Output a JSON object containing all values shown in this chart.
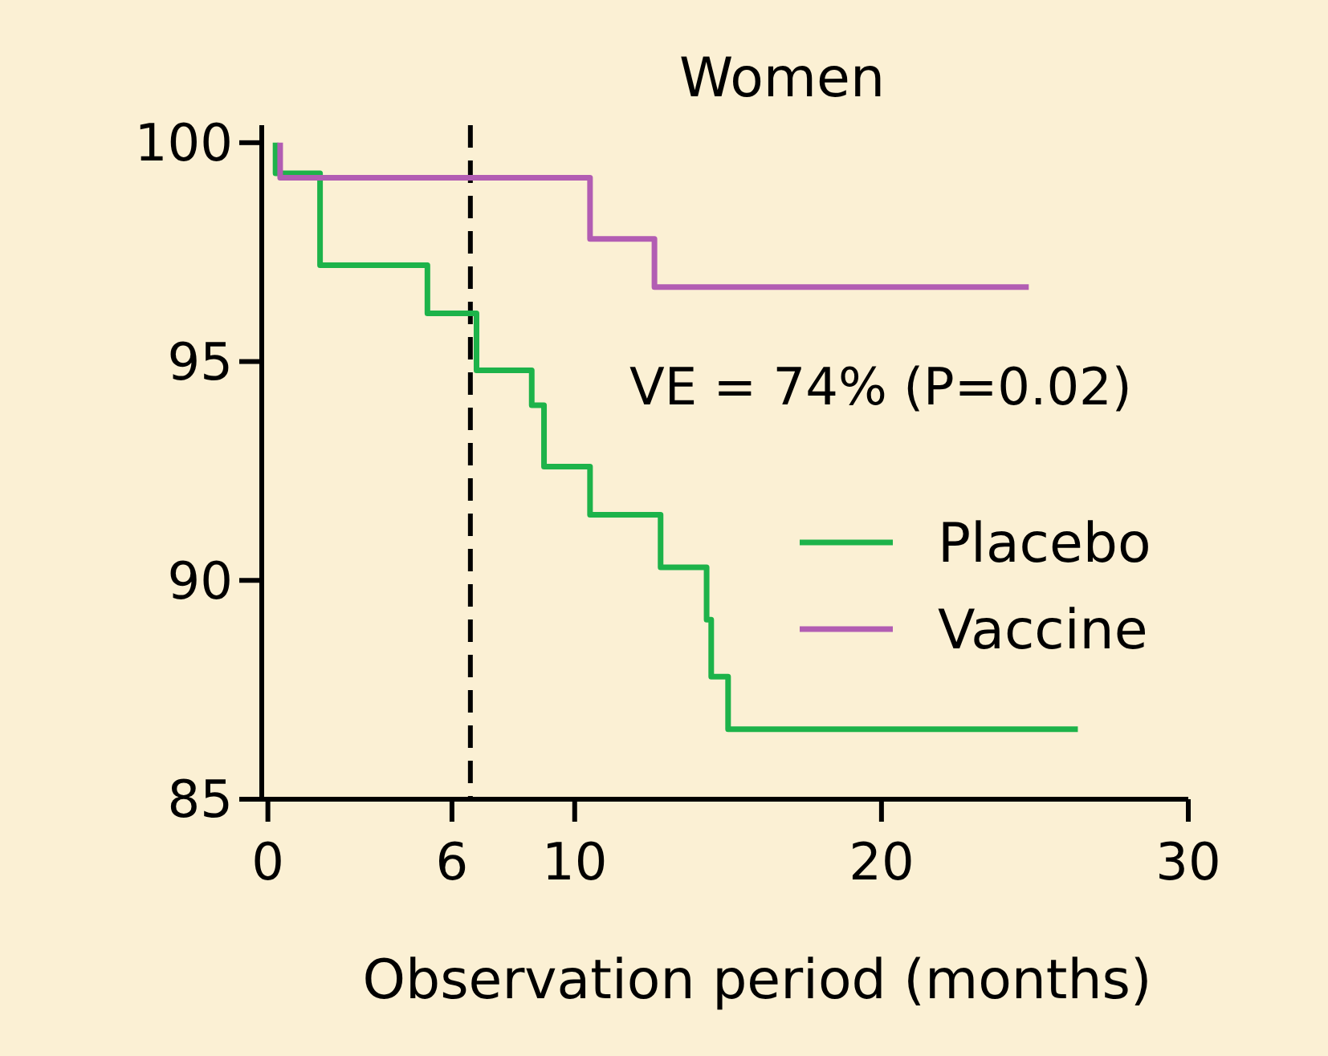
{
  "chart_data": {
    "type": "step",
    "title": "Women",
    "xlabel": "Observation period (months)",
    "xlim": [
      -0.2,
      30
    ],
    "xticks": [
      0,
      6,
      10,
      20,
      30
    ],
    "ylim": [
      85,
      100.4
    ],
    "yticks": [
      85,
      90,
      95,
      100
    ],
    "grid": false,
    "legend": "right",
    "line_style": "solid",
    "marker": "none",
    "annotations": [
      "VE = 74% (P=0.02)"
    ],
    "ref_lines": [
      {
        "axis": "x",
        "value": 6.6,
        "color": "#000000",
        "line_style": "dashed"
      }
    ],
    "series": [
      {
        "name": "Placebo",
        "color": "#1db34a",
        "x": [
          0.25,
          0.25,
          1.7,
          5.2,
          6.8,
          8.6,
          9.0,
          10.5,
          12.8,
          14.3,
          14.45,
          15.0,
          26.4
        ],
        "values": [
          100,
          99.3,
          97.2,
          96.1,
          94.8,
          94.0,
          92.6,
          91.5,
          90.3,
          89.1,
          87.8,
          86.6,
          86.6
        ]
      },
      {
        "name": "Vaccine",
        "color": "#b25db3",
        "x": [
          0.4,
          0.4,
          10.5,
          12.6,
          24.8
        ],
        "values": [
          100,
          99.2,
          97.8,
          96.7,
          96.7
        ]
      }
    ]
  }
}
